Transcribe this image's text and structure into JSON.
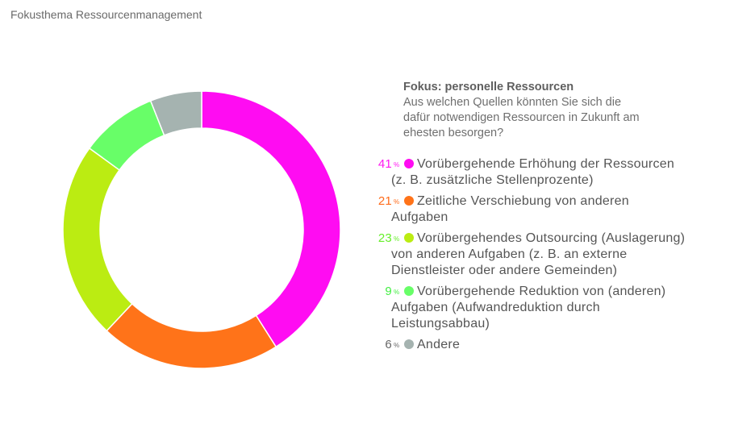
{
  "title": "Fokusthema Ressourcenmanagement",
  "question": {
    "title": "Fokus: personelle Ressourcen",
    "lines": [
      "Aus welchen Quellen könnten Sie sich die",
      "dafür notwendigen Ressourcen in Zukunft am",
      "ehesten besorgen?"
    ]
  },
  "chart_data": {
    "type": "pie",
    "variant": "donut",
    "unit": "%",
    "start": "top, clockwise",
    "slices": [
      {
        "value": 41,
        "label": "41",
        "color": "#ff0cf2",
        "label_color": "#ff18f0",
        "lines": [
          "Vorübergehende Erhöhung der Ressourcen",
          "(z. B. zusätzliche Stellenprozente)"
        ]
      },
      {
        "value": 21,
        "label": "21",
        "color": "#ff7319",
        "label_color": "#ff6b1a",
        "lines": [
          "Zeitliche Verschiebung von anderen",
          "Aufgaben"
        ]
      },
      {
        "value": 23,
        "label": "23",
        "color": "#bbec12",
        "label_color": "#66ee2a",
        "lines": [
          "Vorübergehendes Outsourcing (Auslagerung)",
          "von anderen Aufgaben (z. B. an externe",
          "Dienstleister oder andere Gemeinden)"
        ]
      },
      {
        "value": 9,
        "label": "9",
        "color": "#68fe68",
        "label_color": "#44ee44",
        "lines": [
          "Vorübergehende Reduktion von (anderen)",
          "Aufgaben (Aufwandreduktion durch",
          "Leistungsabbau)"
        ]
      },
      {
        "value": 6,
        "label": "6",
        "color": "#a5b3b0",
        "label_color": "#666666",
        "lines": [
          "Andere"
        ]
      }
    ]
  }
}
